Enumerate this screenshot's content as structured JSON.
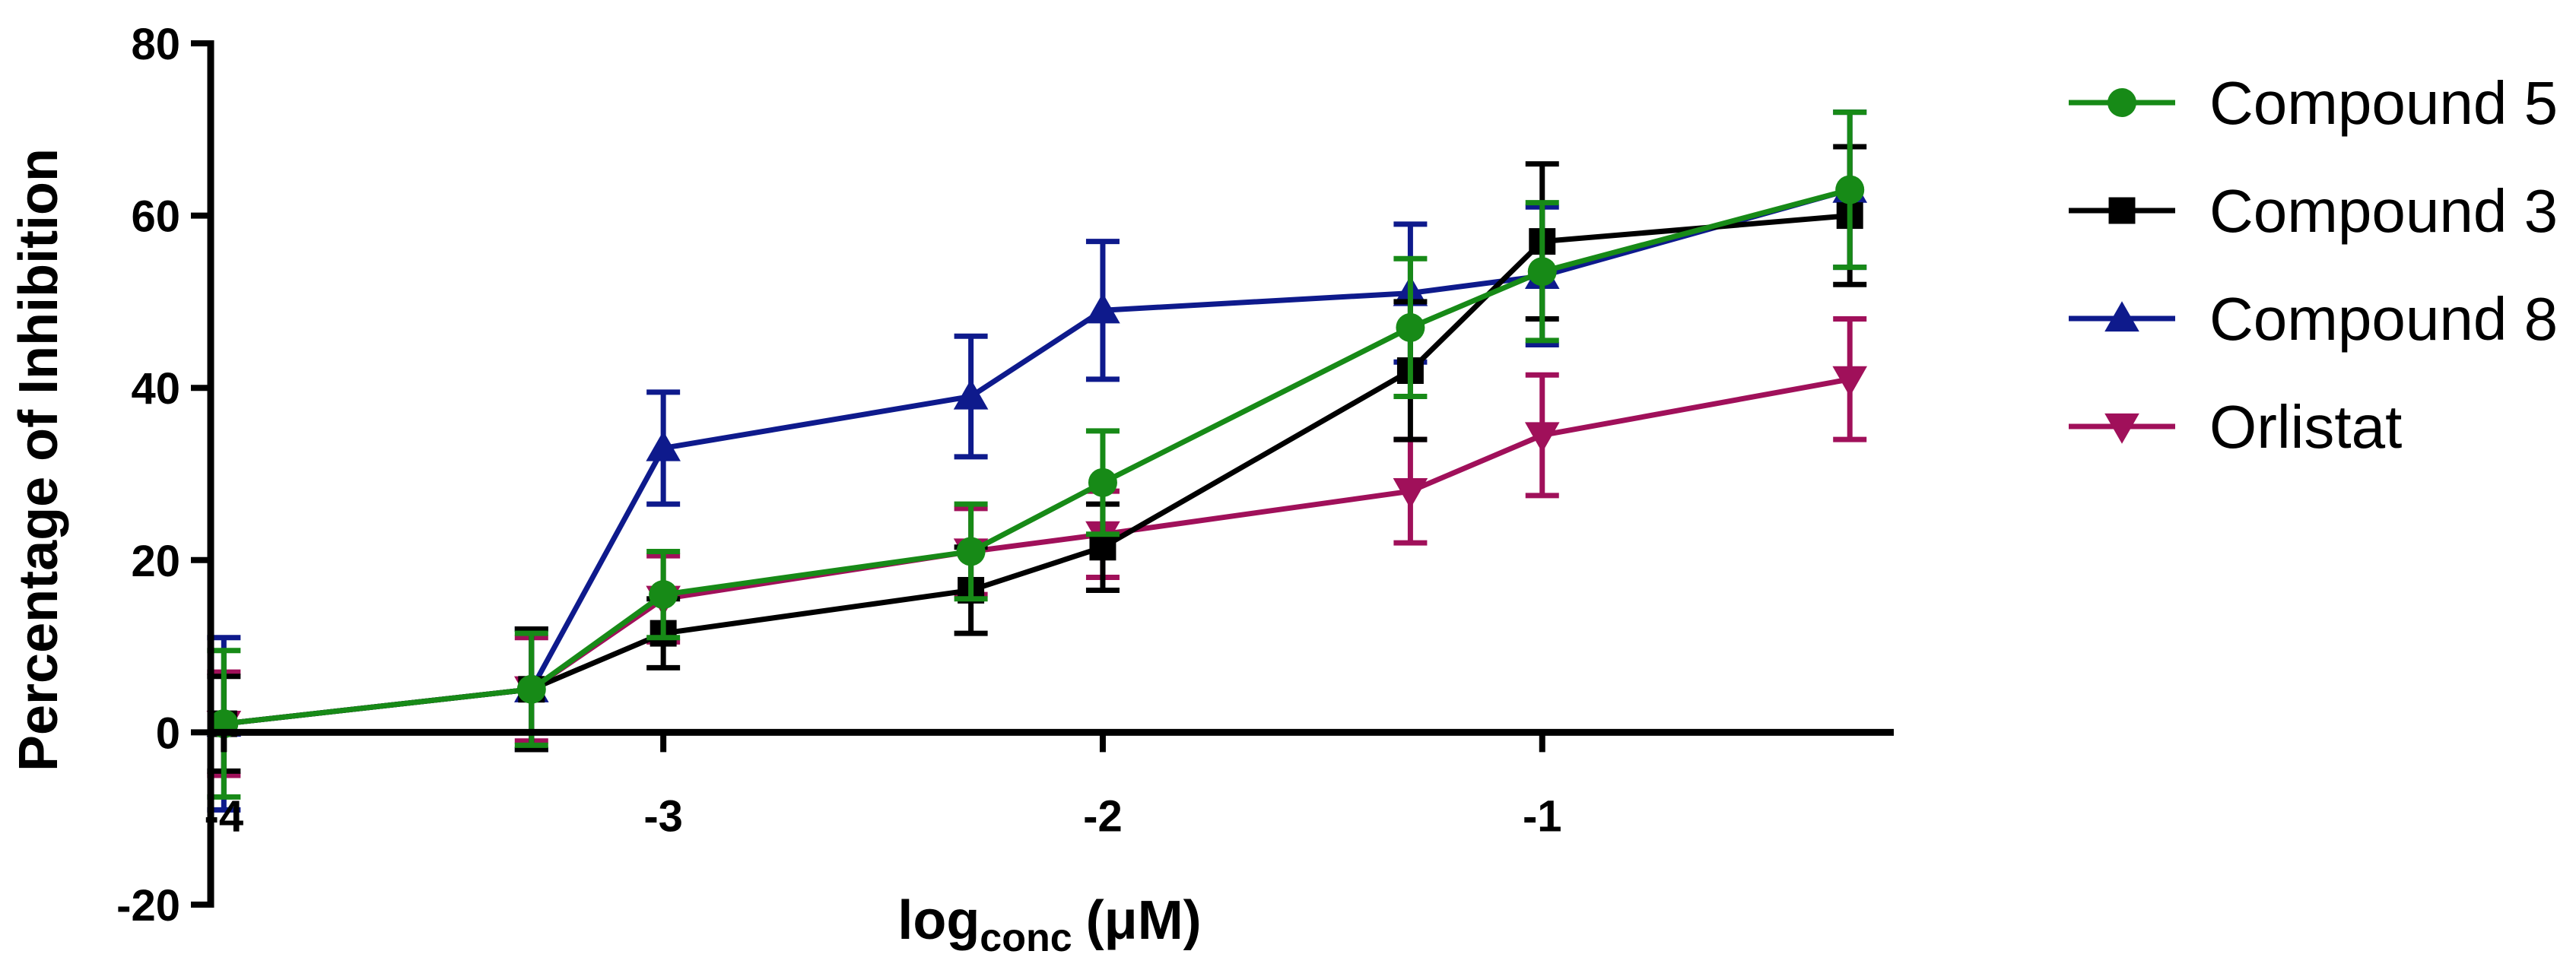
{
  "chart_data": {
    "type": "line",
    "title": "",
    "xlabel_main": "log",
    "xlabel_sub": "conc",
    "xlabel_unit": "(μM)",
    "ylabel": "Percentage of Inhibition",
    "xlim": [
      -4.03,
      -0.2
    ],
    "ylim": [
      -20,
      80
    ],
    "x_axis_at_y": 0,
    "x_ticks": [
      -4,
      -3,
      -2,
      -1
    ],
    "x_tick_labels": [
      "-4",
      "-3",
      "-2",
      "-1"
    ],
    "y_ticks": [
      -20,
      0,
      20,
      40,
      60,
      80
    ],
    "y_tick_labels": [
      "-20",
      "0",
      "20",
      "40",
      "60",
      "80"
    ],
    "legend_position": "right",
    "series": [
      {
        "name": "Orlistat",
        "color": "#a0105a",
        "marker": "triangle-down",
        "x": [
          -4,
          -3.3,
          -3,
          -2.3,
          -2,
          -1.3,
          -1,
          -0.3
        ],
        "y": [
          1,
          5,
          15.5,
          21,
          23,
          28,
          34.5,
          41
        ],
        "err": [
          6,
          6,
          5,
          5,
          5,
          6,
          7,
          7
        ]
      },
      {
        "name": "Compound 8",
        "color": "#0e1a8c",
        "marker": "triangle-up",
        "x": [
          -4,
          -3.3,
          -3,
          -2.3,
          -2,
          -1.3,
          -1,
          -0.3
        ],
        "y": [
          1,
          5,
          33,
          39,
          49,
          51,
          53,
          63
        ],
        "err": [
          10,
          7,
          6.5,
          7,
          8,
          8,
          8,
          9
        ]
      },
      {
        "name": "Compound 3",
        "color": "#000000",
        "marker": "square",
        "x": [
          -4,
          -3.3,
          -3,
          -2.3,
          -2,
          -1.3,
          -1,
          -0.3
        ],
        "y": [
          1,
          5,
          11.5,
          16.5,
          21.5,
          42,
          57,
          60
        ],
        "err": [
          5.5,
          7,
          4,
          5,
          5,
          8,
          9,
          8
        ]
      },
      {
        "name": "Compound 5",
        "color": "#178a17",
        "marker": "circle",
        "x": [
          -4,
          -3.3,
          -3,
          -2.3,
          -2,
          -1.3,
          -1,
          -0.3
        ],
        "y": [
          1,
          5,
          16,
          21,
          29,
          47,
          53.5,
          63
        ],
        "err": [
          8.5,
          6.5,
          5,
          5.5,
          6,
          8,
          8,
          9
        ]
      }
    ],
    "legend_order": [
      "Compound 5",
      "Compound 3",
      "Compound 8",
      "Orlistat"
    ]
  }
}
